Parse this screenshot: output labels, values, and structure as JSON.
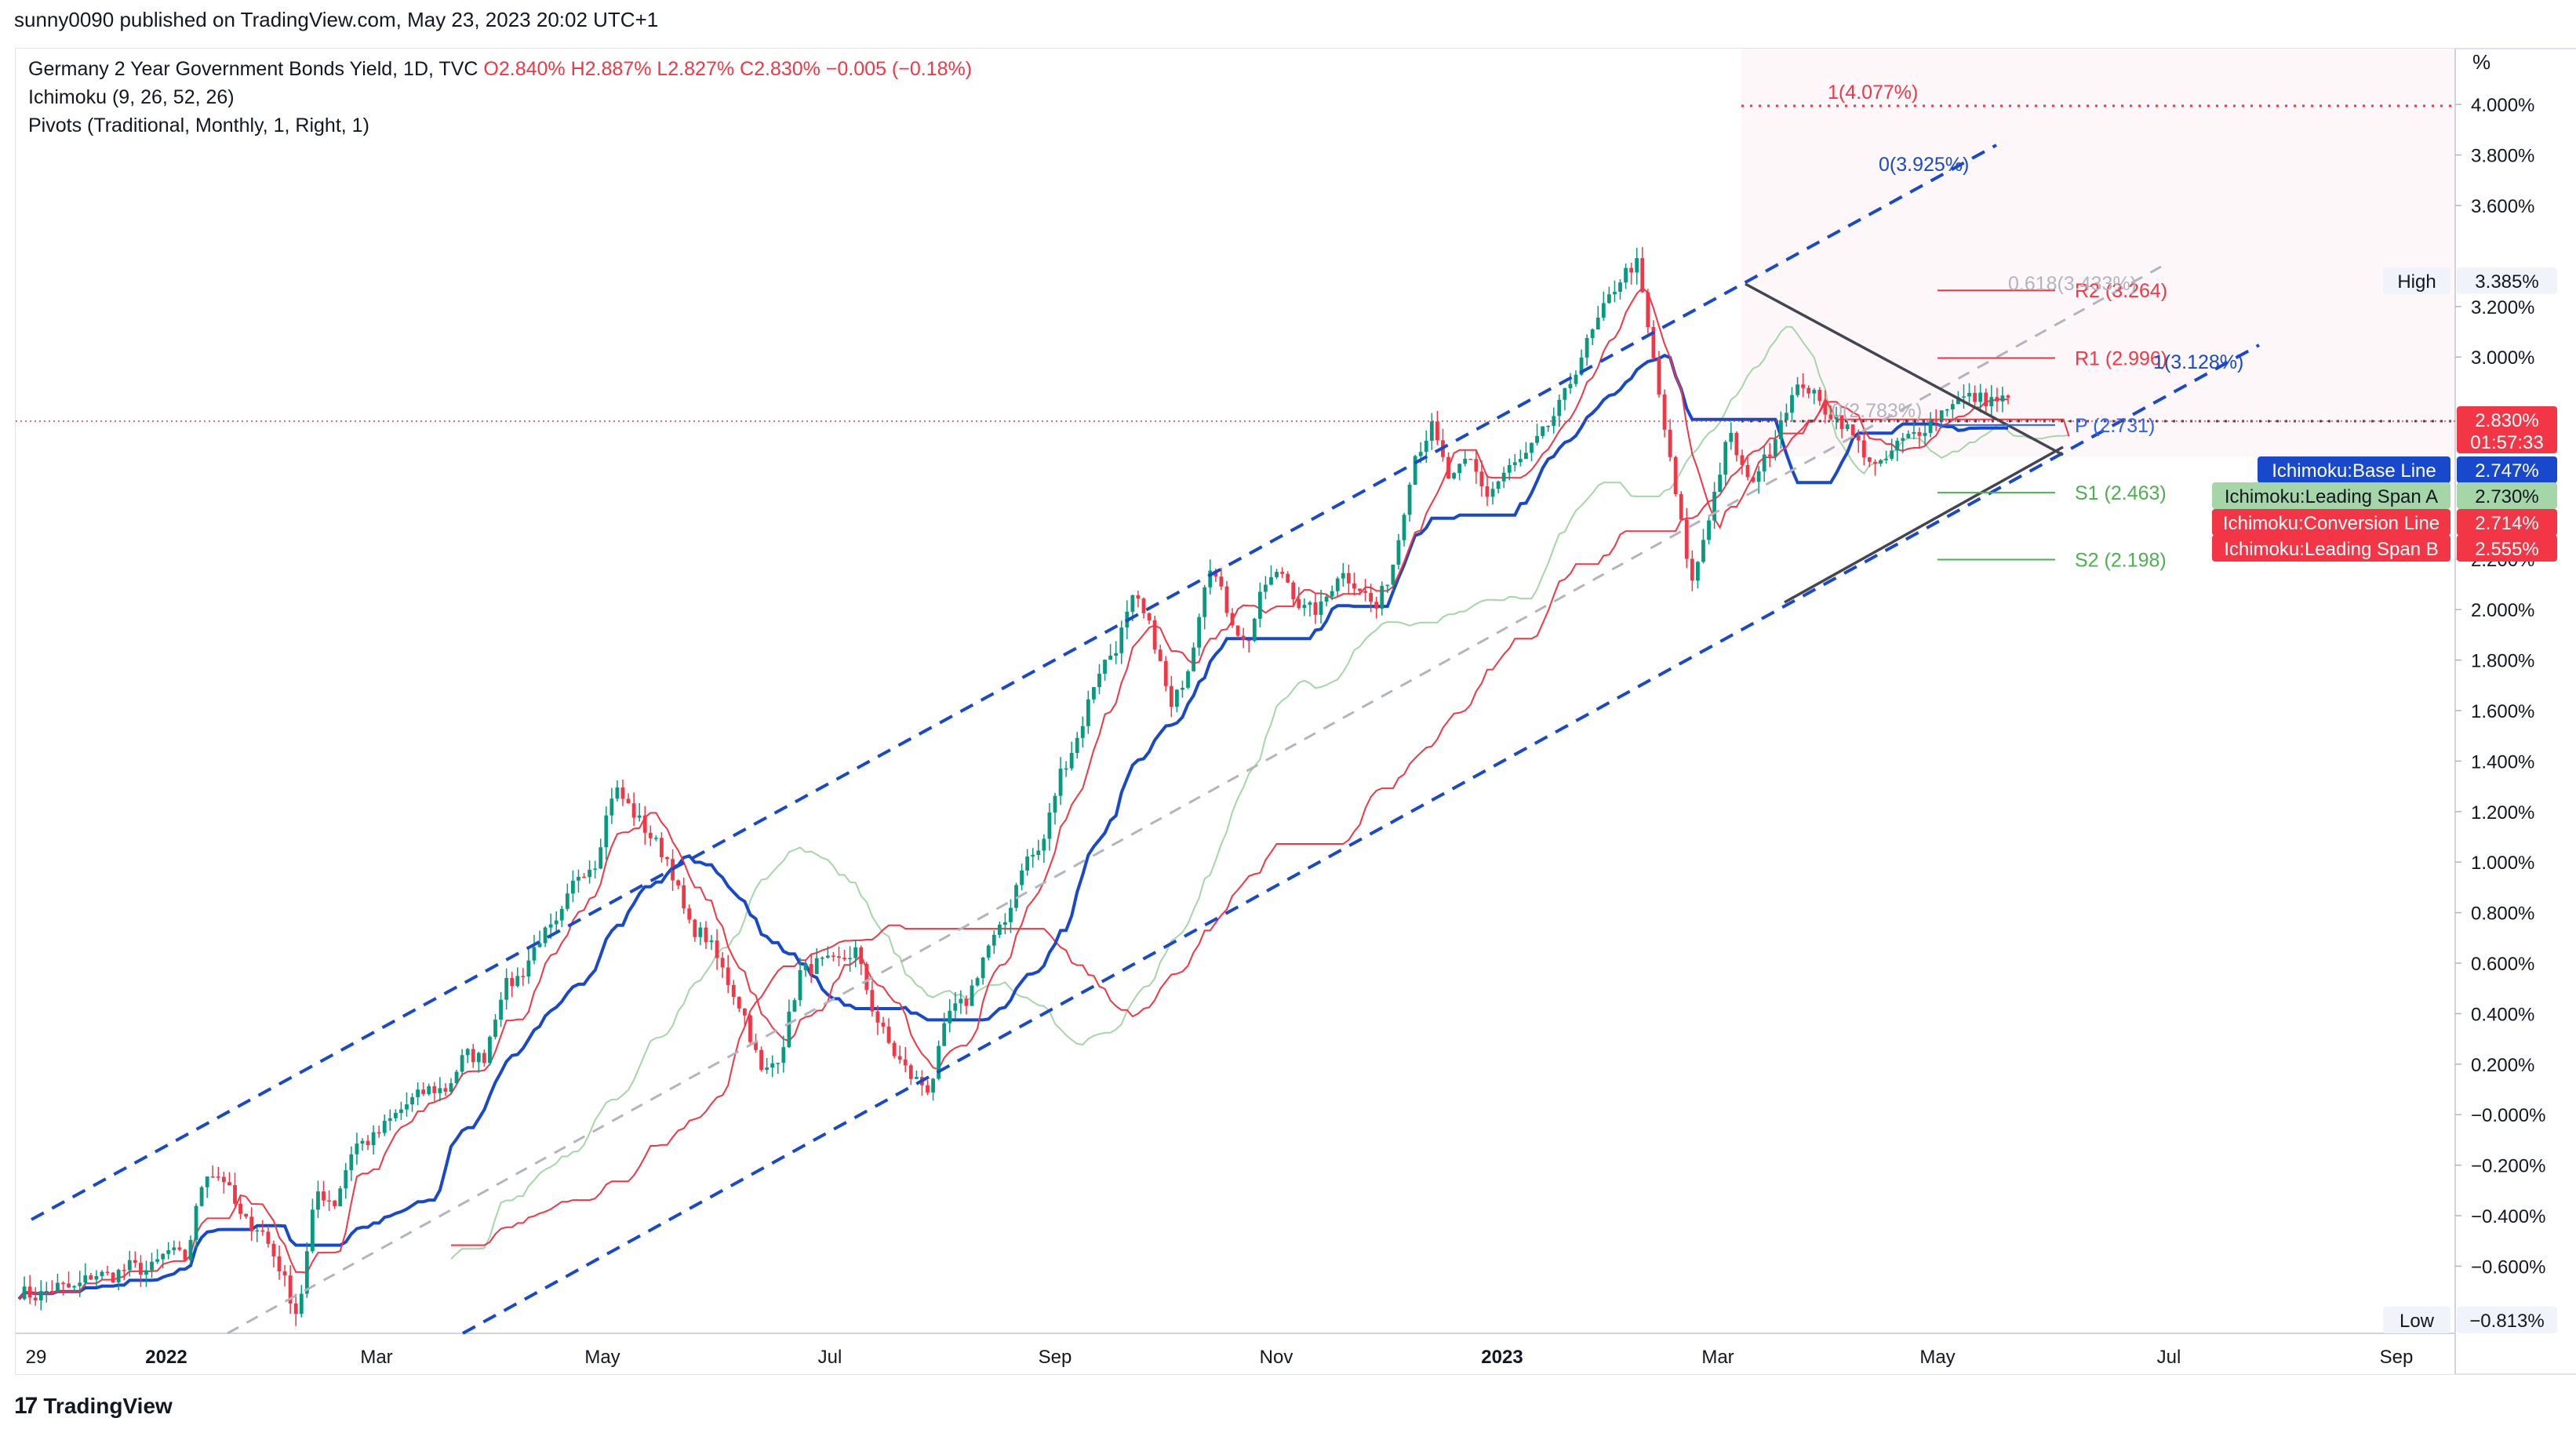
{
  "header": {
    "published": "sunny0090 published on TradingView.com, May 23, 2023 20:02 UTC+1"
  },
  "legend": {
    "symbol": "Germany 2 Year Government Bonds Yield, 1D, TVC",
    "ohlc": "O2.840%  H2.887%  L2.827%  C2.830%  −0.005 (−0.18%)",
    "ichimoku": "Ichimoku (9, 26, 52, 26)",
    "pivots": "Pivots (Traditional, Monthly, 1, Right, 1)"
  },
  "brand": {
    "logo": "17",
    "name": "TradingView"
  },
  "colors": {
    "up": "#089981",
    "down": "#f23645",
    "base": "#1848cc",
    "conversion": "#f23645",
    "spanA": "#a5d6a7",
    "spanB": "#f23645",
    "channel": "#1848cc",
    "fib": "#b2b5be",
    "pivot_r": "#f23645",
    "pivot_s": "#4caf50",
    "pivot_p": "#2962ff",
    "triangle": "#434651"
  },
  "chart_data": {
    "type": "line",
    "title": "Germany 2 Year Government Bonds Yield, 1D, TVC",
    "x_labels": [
      "29",
      "2022",
      "Mar",
      "May",
      "Jul",
      "Sep",
      "Nov",
      "2023",
      "Mar",
      "May",
      "Jul",
      "Sep"
    ],
    "y_unit": "%",
    "y_ticks": [
      "4.000%",
      "3.800%",
      "3.600%",
      "3.200%",
      "3.000%",
      "2.200%",
      "2.000%",
      "1.800%",
      "1.600%",
      "1.400%",
      "1.200%",
      "1.000%",
      "0.800%",
      "0.600%",
      "0.400%",
      "0.200%",
      "−0.000%",
      "−0.200%",
      "−0.400%",
      "−0.600%"
    ],
    "ylim": [
      -0.84,
      4.3
    ],
    "grid": false,
    "price_path": [
      [
        -0.7,
        -0.72
      ],
      [
        -0.68,
        -0.69
      ],
      [
        -0.63,
        -0.64
      ],
      [
        -0.6,
        -0.62
      ],
      [
        -0.54,
        -0.57
      ],
      [
        -0.22,
        -0.25
      ],
      [
        -0.42,
        -0.45
      ],
      [
        -0.6,
        -0.8
      ],
      [
        -0.3,
        -0.35
      ],
      [
        -0.12,
        -0.1
      ],
      [
        -0.02,
        0.05
      ],
      [
        0.1,
        0.1
      ],
      [
        0.24,
        0.22
      ],
      [
        0.5,
        0.55
      ],
      [
        0.7,
        0.75
      ],
      [
        0.95,
        1.0
      ],
      [
        1.3,
        1.2
      ],
      [
        1.1,
        1.0
      ],
      [
        0.75,
        0.7
      ],
      [
        0.55,
        0.4
      ],
      [
        0.15,
        0.25
      ],
      [
        0.56,
        0.6
      ],
      [
        0.6,
        0.65
      ],
      [
        0.4,
        0.25
      ],
      [
        0.15,
        0.1
      ],
      [
        0.4,
        0.45
      ],
      [
        0.65,
        0.75
      ],
      [
        1.0,
        1.05
      ],
      [
        1.35,
        1.5
      ],
      [
        1.75,
        1.85
      ],
      [
        2.05,
        1.9
      ],
      [
        1.6,
        1.8
      ],
      [
        2.2,
        2.0
      ],
      [
        1.85,
        2.1
      ],
      [
        2.15,
        2.0
      ],
      [
        2.0,
        2.15
      ],
      [
        2.1,
        2.0
      ],
      [
        2.2,
        2.6
      ],
      [
        2.72,
        2.5
      ],
      [
        2.6,
        2.45
      ],
      [
        2.55,
        2.6
      ],
      [
        2.7,
        2.82
      ],
      [
        3.0,
        3.15
      ],
      [
        3.3,
        3.38
      ],
      [
        2.95,
        2.5
      ],
      [
        2.1,
        2.4
      ],
      [
        2.7,
        2.5
      ],
      [
        2.6,
        2.8
      ],
      [
        2.9,
        2.8
      ],
      [
        2.75,
        2.65
      ],
      [
        2.55,
        2.65
      ],
      [
        2.7,
        2.75
      ],
      [
        2.83,
        2.84
      ],
      [
        2.83,
        2.83
      ]
    ],
    "last_price": "2.830%",
    "countdown": "01:57:33",
    "price_labels": {
      "high": {
        "name": "High",
        "value": "3.385%"
      },
      "low": {
        "name": "Low",
        "value": "−0.813%"
      },
      "base": {
        "name": "Ichimoku:Base Line",
        "value": "2.747%"
      },
      "spanA": {
        "name": "Ichimoku:Leading Span A",
        "value": "2.730%"
      },
      "conversion": {
        "name": "Ichimoku:Conversion Line",
        "value": "2.714%"
      },
      "spanB": {
        "name": "Ichimoku:Leading Span B",
        "value": "2.555%"
      }
    },
    "pivots": [
      {
        "label": "R2 (3.264)",
        "value": 3.264
      },
      {
        "label": "R1 (2.996)",
        "value": 2.996
      },
      {
        "label": "P (2.731)",
        "value": 2.731
      },
      {
        "label": "S1 (2.463)",
        "value": 2.463
      },
      {
        "label": "S2 (2.198)",
        "value": 2.198
      }
    ],
    "annotations": [
      {
        "text": "1(4.077%)",
        "value": 4.077
      },
      {
        "text": "0(3.925%)",
        "value": 3.925
      },
      {
        "text": "0.618(3.433%)",
        "value": 3.433
      },
      {
        "text": "1(3.128%)",
        "value": 3.128
      },
      {
        "text": "0(2.783%)",
        "value": 2.783
      }
    ]
  }
}
